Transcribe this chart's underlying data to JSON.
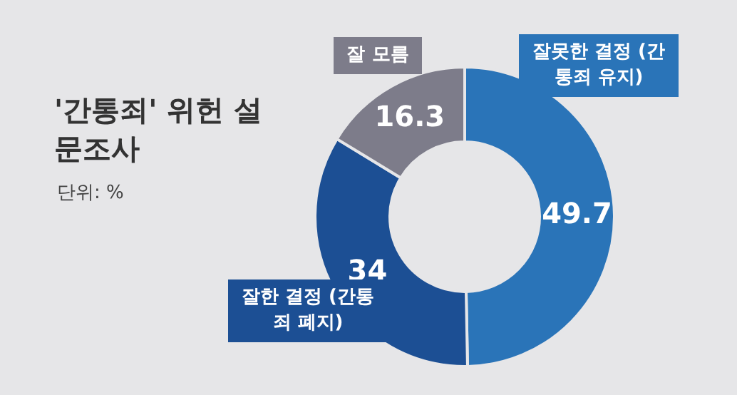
{
  "chart_data": {
    "type": "donut",
    "title": "'간통죄' 위헌 설문조사",
    "subtitle": "단위: %",
    "categories": [
      "잘못한 결정 (간통죄 유지)",
      "잘한 결정 (간통죄 폐지)",
      "잘 모름"
    ],
    "values": [
      49.7,
      34,
      16.3
    ],
    "colors": [
      "#2a74b8",
      "#1c4f94",
      "#7d7c8a"
    ],
    "data_labels": true,
    "legend": false
  }
}
